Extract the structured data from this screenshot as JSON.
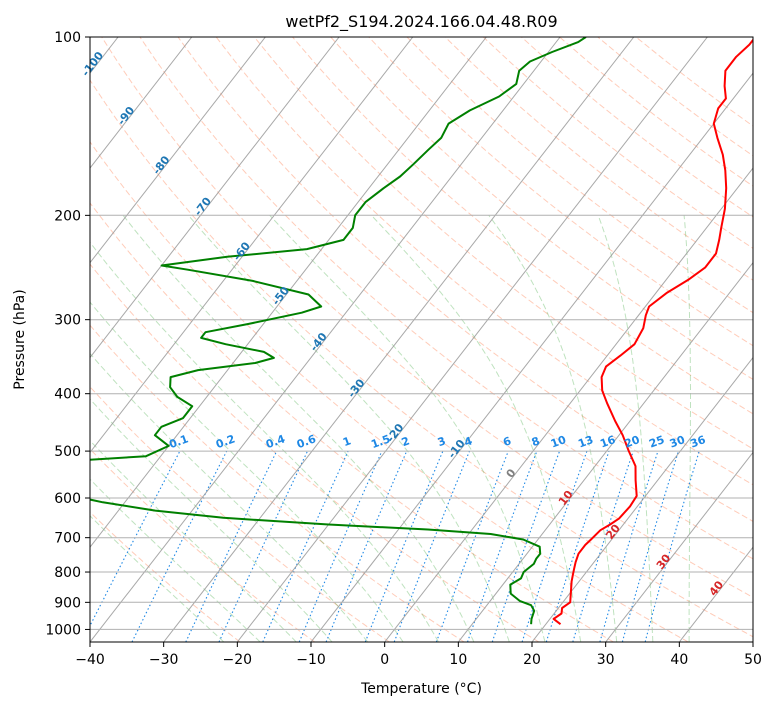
{
  "chart_data": {
    "type": "line",
    "title": "wetPf2_S194.2024.166.04.48.R09",
    "xlabel": "Temperature (°C)",
    "ylabel": "Pressure (hPa)",
    "xlim": [
      -40,
      50
    ],
    "ylim": [
      1050,
      100
    ],
    "y_scale": "log",
    "x_ticks": [
      "−40",
      "−30",
      "−20",
      "−10",
      "0",
      "10",
      "20",
      "30",
      "40",
      "50"
    ],
    "x_tick_values": [
      -40,
      -30,
      -20,
      -10,
      0,
      10,
      20,
      30,
      40,
      50
    ],
    "y_ticks": [
      "100",
      "200",
      "300",
      "400",
      "500",
      "600",
      "700",
      "800",
      "900",
      "1000"
    ],
    "y_tick_values": [
      100,
      200,
      300,
      400,
      500,
      600,
      700,
      800,
      900,
      1000
    ],
    "grid": true,
    "skew": true,
    "series": [
      {
        "color": "#ff0000",
        "points": [
          [
            22.0,
            980
          ],
          [
            20.5,
            960
          ],
          [
            21.0,
            940
          ],
          [
            20.5,
            920
          ],
          [
            21.0,
            900
          ],
          [
            20.3,
            875
          ],
          [
            19.0,
            830
          ],
          [
            18.5,
            810
          ],
          [
            18.0,
            790
          ],
          [
            17.5,
            770
          ],
          [
            17.0,
            745
          ],
          [
            17.0,
            720
          ],
          [
            17.2,
            705
          ],
          [
            17.5,
            680
          ],
          [
            18.2,
            665
          ],
          [
            18.8,
            650
          ],
          [
            19.0,
            620
          ],
          [
            18.8,
            595
          ],
          [
            17.0,
            560
          ],
          [
            15.5,
            530
          ],
          [
            13.0,
            500
          ],
          [
            10.5,
            470
          ],
          [
            8.0,
            445
          ],
          [
            5.0,
            415
          ],
          [
            3.0,
            395
          ],
          [
            1.5,
            375
          ],
          [
            1.0,
            360
          ],
          [
            1.8,
            345
          ],
          [
            2.5,
            330
          ],
          [
            2.0,
            310
          ],
          [
            1.0,
            295
          ],
          [
            0.5,
            285
          ],
          [
            1.5,
            270
          ],
          [
            3.0,
            257
          ],
          [
            4.0,
            245
          ],
          [
            4.0,
            232
          ],
          [
            3.0,
            220
          ],
          [
            2.0,
            210
          ],
          [
            0.5,
            195
          ],
          [
            -1.5,
            180
          ],
          [
            -3.5,
            168
          ],
          [
            -5.5,
            158
          ],
          [
            -8.0,
            148
          ],
          [
            -10.0,
            140
          ],
          [
            -11.0,
            132
          ],
          [
            -11.0,
            127
          ],
          [
            -12.5,
            121
          ],
          [
            -14.0,
            114
          ],
          [
            -14.0,
            108
          ],
          [
            -13.5,
            103
          ],
          [
            -13.5,
            100
          ]
        ]
      },
      {
        "color": "#008000",
        "points": [
          [
            18.0,
            980
          ],
          [
            17.5,
            960
          ],
          [
            17.0,
            930
          ],
          [
            16.0,
            910
          ],
          [
            14.0,
            895
          ],
          [
            12.0,
            870
          ],
          [
            11.0,
            840
          ],
          [
            11.8,
            820
          ],
          [
            11.5,
            800
          ],
          [
            12.0,
            775
          ],
          [
            11.8,
            760
          ],
          [
            11.8,
            745
          ],
          [
            11.0,
            725
          ],
          [
            8.0,
            705
          ],
          [
            3.0,
            690
          ],
          [
            -6.0,
            678
          ],
          [
            -20.0,
            665
          ],
          [
            -35.0,
            648
          ],
          [
            -45.0,
            630
          ],
          [
            -53.0,
            610
          ],
          [
            -60.0,
            588
          ],
          [
            -67.0,
            570
          ],
          [
            -75.0,
            555
          ],
          [
            -85.0,
            538
          ],
          [
            -75.0,
            530
          ],
          [
            -60.0,
            518
          ],
          [
            -52.0,
            510
          ],
          [
            -50.0,
            490
          ],
          [
            -53.0,
            470
          ],
          [
            -53.0,
            455
          ],
          [
            -51.0,
            440
          ],
          [
            -51.0,
            420
          ],
          [
            -54.0,
            405
          ],
          [
            -56.0,
            390
          ],
          [
            -57.0,
            375
          ],
          [
            -54.0,
            365
          ],
          [
            -47.0,
            355
          ],
          [
            -45.0,
            348
          ],
          [
            -47.0,
            340
          ],
          [
            -53.0,
            330
          ],
          [
            -57.0,
            322
          ],
          [
            -57.0,
            315
          ],
          [
            -52.0,
            305
          ],
          [
            -46.0,
            292
          ],
          [
            -44.0,
            285
          ],
          [
            -47.0,
            272
          ],
          [
            -56.0,
            258
          ],
          [
            -66.0,
            247
          ],
          [
            -70.0,
            243
          ],
          [
            -62.0,
            235
          ],
          [
            -52.0,
            228
          ],
          [
            -48.0,
            220
          ],
          [
            -48.0,
            210
          ],
          [
            -49.0,
            200
          ],
          [
            -49.0,
            190
          ],
          [
            -48.0,
            180
          ],
          [
            -47.0,
            172
          ],
          [
            -46.5,
            164
          ],
          [
            -46.0,
            155
          ],
          [
            -45.5,
            148
          ],
          [
            -46.0,
            140
          ],
          [
            -44.5,
            133
          ],
          [
            -42.0,
            126
          ],
          [
            -41.0,
            120
          ],
          [
            -42.0,
            114
          ],
          [
            -41.5,
            110
          ],
          [
            -39.5,
            106
          ],
          [
            -37.0,
            102
          ],
          [
            -36.5,
            100
          ]
        ]
      }
    ],
    "mixing_ratio_labels": [
      "0.1",
      "0.2",
      "0.4",
      "0.6",
      "1",
      "1.5",
      "2",
      "3",
      "4",
      "6",
      "8",
      "10",
      "13",
      "16",
      "20",
      "25",
      "30",
      "36"
    ],
    "mixing_ratio_values": [
      0.1,
      0.2,
      0.4,
      0.6,
      1,
      1.5,
      2,
      3,
      4,
      6,
      8,
      10,
      13,
      16,
      20,
      25,
      30,
      36
    ],
    "mixing_ratio_label_pressure": 500,
    "isotherm_labels": [
      "-100",
      "-90",
      "-80",
      "-70",
      "-60",
      "-50",
      "-40",
      "-30",
      "-20",
      "-10"
    ],
    "isotherm_label_values": [
      -100,
      -90,
      -80,
      -70,
      -60,
      -50,
      -40,
      -30,
      -20,
      -10
    ],
    "isotherm_label_pressures": [
      112,
      137,
      166,
      195,
      232,
      276,
      330,
      395,
      470,
      500
    ],
    "zero_label": "0",
    "zero_label_pressure": 550,
    "dry_adiabat_labels": [
      "10",
      "20",
      "30",
      "40"
    ],
    "dry_adiabat_label_values": [
      10,
      20,
      30,
      40
    ],
    "dry_adiabat_label_pressures": [
      605,
      690,
      775,
      860
    ],
    "colors": {
      "temperature": "#ff0000",
      "dewpoint": "#008000",
      "mixing_ratio": "#1e88e5",
      "isotherm_label": "#1f77b4",
      "dry_adiabat": "#ff7f50",
      "moist_adiabat": "#2ca02c",
      "zero_label": "#808080",
      "dry_label": "#d62728",
      "skewed_grid": "#999999",
      "grid": "#b0b0b0"
    }
  }
}
